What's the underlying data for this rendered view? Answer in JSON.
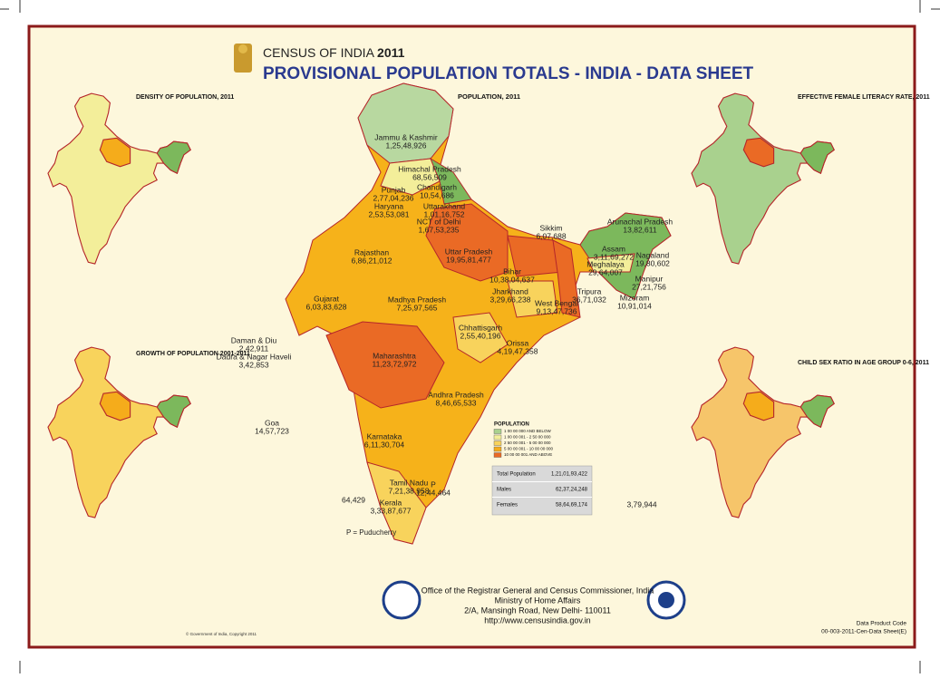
{
  "header": {
    "kicker": "CENSUS OF INDIA",
    "year": "2011",
    "title": "PROVISIONAL POPULATION TOTALS - INDIA - DATA SHEET"
  },
  "main_map": {
    "title": "POPULATION, 2011",
    "regions": [
      {
        "name": "Jammu & Kashmir",
        "value": "1,25,48,926"
      },
      {
        "name": "Himachal Pradesh",
        "value": "68,56,509"
      },
      {
        "name": "Punjab",
        "value": "2,77,04,236"
      },
      {
        "name": "Chandigarh",
        "value": "10,54,686"
      },
      {
        "name": "Uttarakhand",
        "value": "1,01,16,752"
      },
      {
        "name": "Haryana",
        "value": "2,53,53,081"
      },
      {
        "name": "NCT of Delhi",
        "value": "1,67,53,235"
      },
      {
        "name": "Rajasthan",
        "value": "6,86,21,012"
      },
      {
        "name": "Uttar Pradesh",
        "value": "19,95,81,477"
      },
      {
        "name": "Sikkim",
        "value": "6,07,688"
      },
      {
        "name": "Arunachal Pradesh",
        "value": "13,82,611"
      },
      {
        "name": "Assam",
        "value": "3,11,69,272"
      },
      {
        "name": "Nagaland",
        "value": "19,80,602"
      },
      {
        "name": "Meghalaya",
        "value": "29,64,007"
      },
      {
        "name": "Manipur",
        "value": "27,21,756"
      },
      {
        "name": "Tripura",
        "value": "36,71,032"
      },
      {
        "name": "Mizoram",
        "value": "10,91,014"
      },
      {
        "name": "Bihar",
        "value": "10,38,04,637"
      },
      {
        "name": "Jharkhand",
        "value": "3,29,66,238"
      },
      {
        "name": "West Bengal",
        "value": "9,13,47,736"
      },
      {
        "name": "Gujarat",
        "value": "6,03,83,628"
      },
      {
        "name": "Madhya Pradesh",
        "value": "7,25,97,565"
      },
      {
        "name": "Chhattisgarh",
        "value": "2,55,40,196"
      },
      {
        "name": "Orissa",
        "value": "4,19,47,358"
      },
      {
        "name": "Daman & Diu",
        "value": "2,42,911"
      },
      {
        "name": "Dadra & Nagar Haveli",
        "value": "3,42,853"
      },
      {
        "name": "Maharashtra",
        "value": "11,23,72,972"
      },
      {
        "name": "Andhra Pradesh",
        "value": "8,46,65,533"
      },
      {
        "name": "Goa",
        "value": "14,57,723"
      },
      {
        "name": "Karnataka",
        "value": "6,11,30,704"
      },
      {
        "name": "Tamil Nadu",
        "value": "7,21,38,958"
      },
      {
        "name": "Kerala",
        "value": "3,33,87,677"
      },
      {
        "name": "P",
        "value": "12,44,464"
      },
      {
        "value": "64,429"
      },
      {
        "value": "3,79,944"
      }
    ],
    "puducherry_note": "P = Puducherry",
    "legend": {
      "title": "POPULATION",
      "items": [
        {
          "label": "1 00 00 000 AND BELOW",
          "color": "#a9d18e"
        },
        {
          "label": "1 00 00 001 - 2 50 00 000",
          "color": "#f3ee9a"
        },
        {
          "label": "2 50 00 001 - 5 00 00 000",
          "color": "#f8d35c"
        },
        {
          "label": "5 00 00 001 - 10 00 00 000",
          "color": "#f5ac1b"
        },
        {
          "label": "10 00 00 001 AND ABOVE",
          "color": "#ea6a25"
        }
      ]
    },
    "totals": [
      [
        "Total Population",
        "1,21,01,93,422"
      ],
      [
        "Males",
        "62,37,24,248"
      ],
      [
        "Females",
        "58,64,69,174"
      ]
    ]
  },
  "small_maps": [
    {
      "title": "DENSITY OF POPULATION, 2011"
    },
    {
      "title": "GROWTH OF POPULATION 2001-2011"
    },
    {
      "title": "EFFECTIVE FEMALE LITERACY RATE, 2011"
    },
    {
      "title": "CHILD SEX RATIO IN AGE GROUP 0-6, 2011"
    }
  ],
  "footer": {
    "office": "Office of the Registrar General and Census Commissioner, India",
    "ministry": "Ministry of Home Affairs",
    "address": "2/A, Mansingh Road, New Delhi- 110011",
    "url": "http://www.censusindia.gov.in",
    "product_label": "Data Product Code",
    "product_code": "00-003-2011-Cen-Data Sheet(E)",
    "copyright": "© Government of India, Copyright 2011"
  }
}
